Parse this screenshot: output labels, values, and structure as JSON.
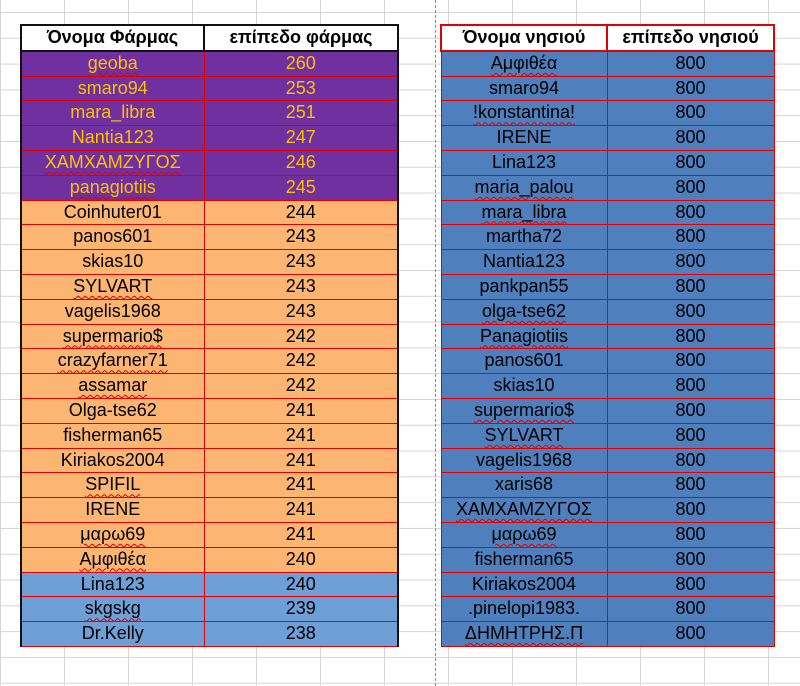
{
  "farm_table": {
    "headers": [
      "Όνομα Φάρμας",
      "επίπεδο φάρμας"
    ],
    "rows": [
      {
        "name": "geoba",
        "level": "260",
        "style": "purple",
        "squig": true
      },
      {
        "name": "smaro94",
        "level": "253",
        "style": "purple",
        "squig": false
      },
      {
        "name": "mara_libra",
        "level": "251",
        "style": "purple",
        "squig": false
      },
      {
        "name": "Nantia123",
        "level": "247",
        "style": "purple",
        "squig": false
      },
      {
        "name": "ΧΑΜΧΑΜΖΥΓΟΣ",
        "level": "246",
        "style": "purple",
        "squig": true
      },
      {
        "name": "panagiotiis",
        "level": "245",
        "style": "purple",
        "squig": true
      },
      {
        "name": "Coinhuter01",
        "level": "244",
        "style": "orange",
        "squig": false
      },
      {
        "name": "panos601",
        "level": "243",
        "style": "orange",
        "squig": false
      },
      {
        "name": "skias10",
        "level": "243",
        "style": "orange",
        "squig": false
      },
      {
        "name": "SYLVART",
        "level": "243",
        "style": "orange",
        "squig": true
      },
      {
        "name": "vagelis1968",
        "level": "243",
        "style": "orange",
        "squig": false
      },
      {
        "name": "supermario$",
        "level": "242",
        "style": "orange",
        "squig": true
      },
      {
        "name": "crazyfarner71",
        "level": "242",
        "style": "orange",
        "squig": true
      },
      {
        "name": "assamar",
        "level": "242",
        "style": "orange",
        "squig": true
      },
      {
        "name": "Olga-tse62",
        "level": "241",
        "style": "orange",
        "squig": false
      },
      {
        "name": "fisherman65",
        "level": "241",
        "style": "orange",
        "squig": false
      },
      {
        "name": "Kiriakos2004",
        "level": "241",
        "style": "orange",
        "squig": false
      },
      {
        "name": "SPIFIL",
        "level": "241",
        "style": "orange",
        "squig": true
      },
      {
        "name": "IRENE",
        "level": "241",
        "style": "orange",
        "squig": false
      },
      {
        "name": "μαρω69",
        "level": "241",
        "style": "orange",
        "squig": true
      },
      {
        "name": "Αμφιθέα",
        "level": "240",
        "style": "orange",
        "squig": true
      },
      {
        "name": "Lina123",
        "level": "240",
        "style": "blue",
        "squig": false
      },
      {
        "name": "skgskg",
        "level": "239",
        "style": "blue",
        "squig": true
      },
      {
        "name": "Dr.Kelly",
        "level": "238",
        "style": "blue",
        "squig": false
      }
    ]
  },
  "island_table": {
    "headers": [
      "Όνομα νησιού",
      "επίπεδο νησιού"
    ],
    "rows": [
      {
        "name": "Αμφιθέα",
        "level": "800",
        "squig": true
      },
      {
        "name": "smaro94",
        "level": "800",
        "squig": false
      },
      {
        "name": "!konstantina!",
        "level": "800",
        "squig": true
      },
      {
        "name": "IRENE",
        "level": "800",
        "squig": false
      },
      {
        "name": "Lina123",
        "level": "800",
        "squig": false
      },
      {
        "name": "maria_palou",
        "level": "800",
        "squig": true
      },
      {
        "name": "mara_libra",
        "level": "800",
        "squig": true
      },
      {
        "name": "martha72",
        "level": "800",
        "squig": false
      },
      {
        "name": "Nantia123",
        "level": "800",
        "squig": false
      },
      {
        "name": "pankpan55",
        "level": "800",
        "squig": false
      },
      {
        "name": "olga-tse62",
        "level": "800",
        "squig": true
      },
      {
        "name": "Panagiotiis",
        "level": "800",
        "squig": true
      },
      {
        "name": "panos601",
        "level": "800",
        "squig": false
      },
      {
        "name": "skias10",
        "level": "800",
        "squig": false
      },
      {
        "name": "supermario$",
        "level": "800",
        "squig": true
      },
      {
        "name": "SYLVART",
        "level": "800",
        "squig": true
      },
      {
        "name": "vagelis1968",
        "level": "800",
        "squig": false
      },
      {
        "name": "xaris68",
        "level": "800",
        "squig": false
      },
      {
        "name": "ΧΑΜΧΑΜΖΥΓΟΣ",
        "level": "800",
        "squig": true
      },
      {
        "name": "μαρω69",
        "level": "800",
        "squig": true
      },
      {
        "name": "fisherman65",
        "level": "800",
        "squig": false
      },
      {
        "name": "Kiriakos2004",
        "level": "800",
        "squig": false
      },
      {
        "name": ".pinelopi1983.",
        "level": "800",
        "squig": false
      },
      {
        "name": "ΔΗΜΗΤΡΗΣ.Π",
        "level": "800",
        "squig": true
      }
    ]
  }
}
